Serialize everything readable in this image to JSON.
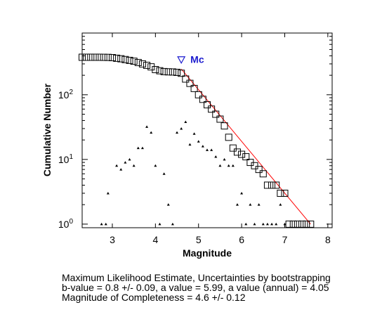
{
  "chart_data": {
    "type": "scatter",
    "xlabel": "Magnitude",
    "ylabel": "Cumulative Number",
    "xlim": [
      2.3,
      8.1
    ],
    "ylim": [
      0.88,
      900
    ],
    "yscale": "log",
    "x_ticks": [
      3,
      4,
      5,
      6,
      7,
      8
    ],
    "y_ticks": [
      {
        "value": 1,
        "base": "10",
        "exp": "0"
      },
      {
        "value": 10,
        "base": "10",
        "exp": "1"
      },
      {
        "value": 100,
        "base": "10",
        "exp": "2"
      }
    ],
    "grid": false,
    "series": [
      {
        "marker": "square",
        "color": "#000000",
        "x": [
          2.3,
          2.4,
          2.5,
          2.6,
          2.7,
          2.8,
          2.9,
          3.0,
          3.1,
          3.2,
          3.3,
          3.4,
          3.5,
          3.6,
          3.7,
          3.8,
          3.9,
          4.0,
          4.1,
          4.2,
          4.3,
          4.4,
          4.5,
          4.6,
          4.7,
          4.8,
          4.9,
          5.0,
          5.1,
          5.2,
          5.3,
          5.4,
          5.5,
          5.6,
          5.7,
          5.8,
          5.9,
          6.0,
          6.1,
          6.2,
          6.3,
          6.4,
          6.5,
          6.6,
          6.7,
          6.8,
          6.9,
          7.0,
          7.1,
          7.2,
          7.3,
          7.4,
          7.5,
          7.6
        ],
        "y": [
          380,
          380,
          380,
          380,
          380,
          379,
          378,
          375,
          367,
          360,
          350,
          340,
          330,
          315,
          300,
          285,
          270,
          245,
          235,
          228,
          226,
          225,
          222,
          215,
          175,
          150,
          125,
          100,
          85,
          70,
          60,
          50,
          42,
          33,
          22,
          15,
          13,
          12,
          11,
          9,
          8,
          7,
          6,
          4,
          4,
          4,
          3,
          3,
          1,
          1,
          1,
          1,
          1,
          1
        ]
      },
      {
        "marker": "triangle",
        "color": "#000000",
        "x": [
          2.75,
          2.85,
          2.9,
          3.1,
          3.2,
          3.3,
          3.4,
          3.5,
          3.6,
          3.7,
          3.8,
          3.9,
          4.0,
          4.1,
          4.2,
          4.3,
          4.4,
          4.5,
          4.6,
          4.7,
          4.8,
          4.9,
          5.0,
          5.1,
          5.2,
          5.3,
          5.4,
          5.5,
          5.6,
          5.7,
          5.8,
          5.9,
          6.0,
          6.1,
          6.2,
          6.3,
          6.4,
          6.5,
          6.6,
          6.7,
          6.8,
          6.9,
          7.0
        ],
        "y": [
          1,
          1,
          3,
          8,
          7,
          9,
          10,
          8,
          15,
          15,
          32,
          26,
          8,
          1,
          6,
          2,
          1,
          26,
          30,
          38,
          17,
          25,
          19,
          16,
          14,
          14,
          11,
          8,
          10,
          8,
          8,
          2,
          3,
          1,
          2,
          1,
          2,
          1,
          1,
          1,
          1,
          2,
          1
        ]
      },
      {
        "marker": "line",
        "color": "#ff0000",
        "x": [
          4.6,
          7.6
        ],
        "y": [
          250,
          1
        ]
      }
    ],
    "annotations": [
      {
        "marker": "triangle-down",
        "color": "#1c1ccf",
        "x": 4.6,
        "y": 350,
        "label": "Mc"
      }
    ]
  },
  "caption": {
    "line1": "Maximum Likelihood Estimate, Uncertainties by bootstrapping",
    "line2": "b-value = 0.8 +/- 0.09,  a value = 5.99,  a value (annual) = 4.05",
    "line3": "Magnitude of Completeness = 4.6 +/- 0.12"
  }
}
